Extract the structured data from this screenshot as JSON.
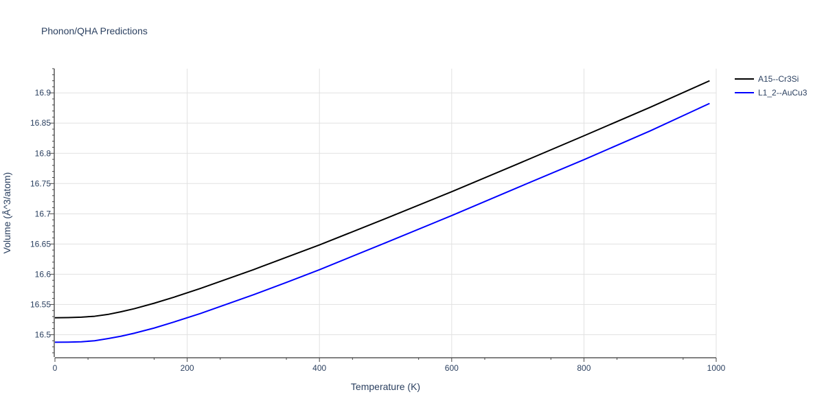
{
  "chart_data": {
    "type": "line",
    "title": "Phonon/QHA Predictions",
    "xlabel": "Temperature (K)",
    "ylabel": "Volume (Å^3/atom)",
    "xlim": [
      0,
      1000
    ],
    "ylim": [
      16.463,
      16.94
    ],
    "x_ticks": [
      0,
      200,
      400,
      600,
      800,
      1000
    ],
    "y_ticks": [
      16.5,
      16.55,
      16.6,
      16.65,
      16.7,
      16.75,
      16.8,
      16.85,
      16.9
    ],
    "grid": true,
    "legend_position": "top-right",
    "series": [
      {
        "name": "A15--Cr3Si",
        "color": "#000000",
        "x": [
          0,
          20,
          40,
          60,
          80,
          100,
          120,
          150,
          180,
          220,
          260,
          300,
          350,
          400,
          500,
          600,
          700,
          800,
          900,
          990
        ],
        "y": [
          16.528,
          16.5283,
          16.529,
          16.5305,
          16.5335,
          16.538,
          16.543,
          16.552,
          16.562,
          16.5765,
          16.592,
          16.6075,
          16.628,
          16.6485,
          16.692,
          16.7365,
          16.7825,
          16.829,
          16.876,
          16.92
        ]
      },
      {
        "name": "L1_2--AuCu3",
        "color": "#0000ff",
        "x": [
          0,
          20,
          40,
          60,
          80,
          100,
          120,
          150,
          180,
          220,
          260,
          300,
          350,
          400,
          500,
          600,
          700,
          800,
          900,
          990
        ],
        "y": [
          16.4875,
          16.4877,
          16.4883,
          16.49,
          16.4935,
          16.4975,
          16.5025,
          16.511,
          16.521,
          16.535,
          16.5505,
          16.566,
          16.5865,
          16.6075,
          16.652,
          16.697,
          16.7435,
          16.7895,
          16.837,
          16.8825
        ]
      }
    ]
  }
}
